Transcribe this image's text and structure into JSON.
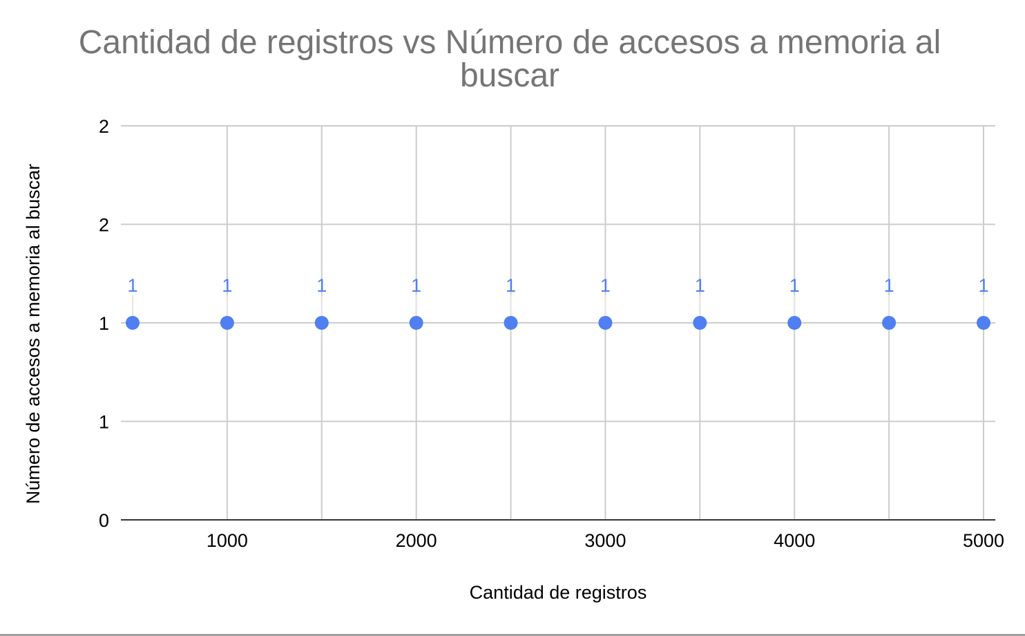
{
  "chart_data": {
    "type": "scatter",
    "title_lines": [
      "Cantidad de registros vs Número de accesos a memoria al",
      "buscar"
    ],
    "xlabel": "Cantidad de registros",
    "ylabel": "Número de accesos a memoria al buscar",
    "xlim": [
      500,
      5000
    ],
    "ylim": [
      0,
      2
    ],
    "x_ticks": [
      1000,
      2000,
      3000,
      4000,
      5000
    ],
    "x_tick_labels": [
      "1000",
      "2000",
      "3000",
      "4000",
      "5000"
    ],
    "x_gridlines": [
      1000,
      1500,
      2000,
      2500,
      3000,
      3500,
      4000,
      4500,
      5000
    ],
    "y_ticks": [
      0,
      0.5,
      1,
      1.5,
      2
    ],
    "y_tick_labels": [
      "0",
      "1",
      "1",
      "2",
      "2"
    ],
    "grid": true,
    "legend": "none",
    "series": [
      {
        "color": "#4f7ff0",
        "x": [
          500,
          1000,
          1500,
          2000,
          2500,
          3000,
          3500,
          4000,
          4500,
          5000
        ],
        "y": [
          1,
          1,
          1,
          1,
          1,
          1,
          1,
          1,
          1,
          1
        ],
        "data_labels": [
          "1",
          "1",
          "1",
          "1",
          "1",
          "1",
          "1",
          "1",
          "1",
          "1"
        ]
      }
    ],
    "colors": {
      "title": "#757575",
      "grid": "#cccccc",
      "axis": "#333333",
      "point": "#4f7ff0",
      "label": "#4f7ff0"
    }
  }
}
